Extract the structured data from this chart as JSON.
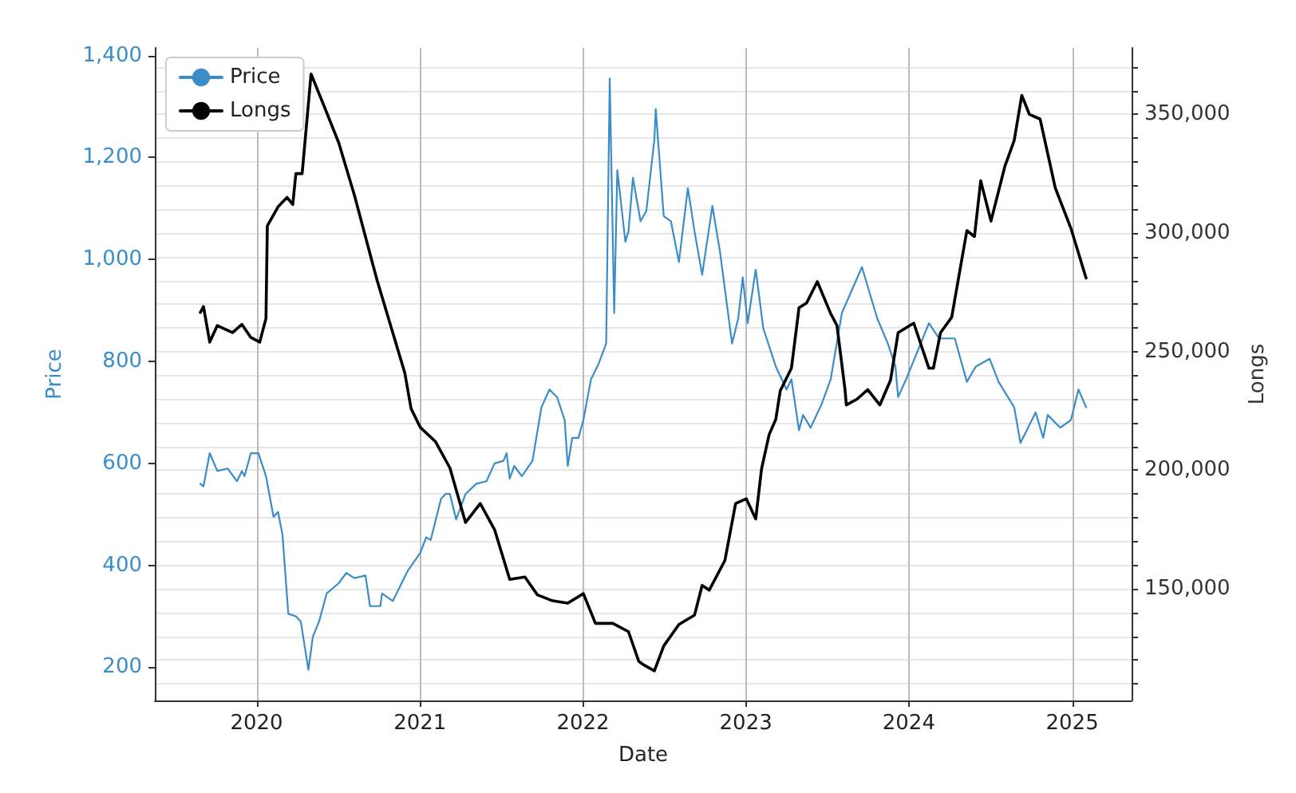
{
  "chart_data": {
    "type": "line",
    "xlabel": "Date",
    "ylabel": "Price",
    "y2label": "Longs",
    "xlim": [
      "2019-05-18",
      "2025-05-14"
    ],
    "xticks": [
      "2020",
      "2021",
      "2022",
      "2023",
      "2024",
      "2025"
    ],
    "ylim": [
      135,
      1415
    ],
    "yticks": [
      {
        "value": 200,
        "label": "200"
      },
      {
        "value": 400,
        "label": "400"
      },
      {
        "value": 600,
        "label": "600"
      },
      {
        "value": 800,
        "label": "800"
      },
      {
        "value": 1000,
        "label": "1,000"
      },
      {
        "value": 1200,
        "label": "1,200"
      },
      {
        "value": 1400,
        "label": "1,400"
      }
    ],
    "y2lim": [
      103000,
      378000
    ],
    "y2ticks": [
      {
        "value": 110000,
        "label": null
      },
      {
        "value": 120000,
        "label": null
      },
      {
        "value": 130000,
        "label": null
      },
      {
        "value": 140000,
        "label": null
      },
      {
        "value": 150000,
        "label": "150,000"
      },
      {
        "value": 160000,
        "label": null
      },
      {
        "value": 170000,
        "label": null
      },
      {
        "value": 180000,
        "label": null
      },
      {
        "value": 190000,
        "label": null
      },
      {
        "value": 200000,
        "label": "200,000"
      },
      {
        "value": 210000,
        "label": null
      },
      {
        "value": 220000,
        "label": null
      },
      {
        "value": 230000,
        "label": null
      },
      {
        "value": 240000,
        "label": null
      },
      {
        "value": 250000,
        "label": "250,000"
      },
      {
        "value": 260000,
        "label": null
      },
      {
        "value": 270000,
        "label": null
      },
      {
        "value": 280000,
        "label": null
      },
      {
        "value": 290000,
        "label": null
      },
      {
        "value": 300000,
        "label": "300,000"
      },
      {
        "value": 310000,
        "label": null
      },
      {
        "value": 320000,
        "label": null
      },
      {
        "value": 330000,
        "label": null
      },
      {
        "value": 340000,
        "label": null
      },
      {
        "value": 350000,
        "label": "350,000"
      },
      {
        "value": 360000,
        "label": null
      },
      {
        "value": 370000,
        "label": null
      }
    ],
    "grid": true,
    "legend": "top left",
    "series": [
      {
        "name": "Price",
        "color": "#3a8dc8",
        "x": [
          "2019-08-28",
          "2019-09-04",
          "2019-09-18",
          "2019-10-05",
          "2019-10-28",
          "2019-11-18",
          "2019-11-29",
          "2019-12-05",
          "2019-12-19",
          "2020-01-05",
          "2020-01-22",
          "2020-02-08",
          "2020-02-18",
          "2020-02-28",
          "2020-03-12",
          "2020-03-29",
          "2020-04-09",
          "2020-04-26",
          "2020-05-06",
          "2020-05-20",
          "2020-06-06",
          "2020-07-03",
          "2020-07-20",
          "2020-08-07",
          "2020-09-01",
          "2020-09-11",
          "2020-10-04",
          "2020-10-08",
          "2020-11-01",
          "2020-11-18",
          "2020-12-05",
          "2021-01-02",
          "2021-01-15",
          "2021-01-25",
          "2021-02-17",
          "2021-02-27",
          "2021-03-09",
          "2021-03-23",
          "2021-04-13",
          "2021-05-07",
          "2021-05-30",
          "2021-06-17",
          "2021-07-07",
          "2021-07-14",
          "2021-07-21",
          "2021-07-31",
          "2021-08-17",
          "2021-09-10",
          "2021-09-30",
          "2021-10-18",
          "2021-11-04",
          "2021-11-21",
          "2021-11-28",
          "2021-12-08",
          "2021-12-22",
          "2022-01-02",
          "2022-01-19",
          "2022-02-05",
          "2022-02-22",
          "2022-03-02",
          "2022-03-12",
          "2022-03-19",
          "2022-04-06",
          "2022-04-13",
          "2022-04-23",
          "2022-05-10",
          "2022-05-23",
          "2022-06-10",
          "2022-06-13",
          "2022-07-01",
          "2022-07-17",
          "2022-08-04",
          "2022-08-24",
          "2022-09-08",
          "2022-09-25",
          "2022-10-18",
          "2022-11-04",
          "2022-12-01",
          "2022-12-15",
          "2022-12-25",
          "2023-01-05",
          "2023-01-23",
          "2023-02-09",
          "2023-03-09",
          "2023-04-02",
          "2023-04-13",
          "2023-04-30",
          "2023-05-09",
          "2023-05-26",
          "2023-06-19",
          "2023-07-10",
          "2023-08-04",
          "2023-09-18",
          "2023-10-22",
          "2023-11-15",
          "2023-12-02",
          "2023-12-08",
          "2023-12-26",
          "2024-02-15",
          "2024-03-09",
          "2024-04-13",
          "2024-05-10",
          "2024-05-30",
          "2024-06-30",
          "2024-07-20",
          "2024-08-24",
          "2024-09-07",
          "2024-10-11",
          "2024-10-28",
          "2024-11-07",
          "2024-12-05",
          "2024-12-29",
          "2025-01-15",
          "2025-02-01"
        ],
        "values": [
          560,
          555,
          620,
          585,
          590,
          565,
          585,
          575,
          620,
          620,
          575,
          495,
          505,
          460,
          305,
          300,
          290,
          195,
          260,
          290,
          345,
          365,
          385,
          375,
          380,
          320,
          320,
          345,
          330,
          360,
          390,
          425,
          455,
          450,
          530,
          540,
          540,
          490,
          540,
          560,
          565,
          600,
          605,
          620,
          570,
          595,
          575,
          605,
          710,
          745,
          730,
          685,
          595,
          650,
          650,
          685,
          765,
          795,
          835,
          1355,
          895,
          1175,
          1035,
          1055,
          1160,
          1075,
          1095,
          1235,
          1295,
          1085,
          1075,
          995,
          1140,
          1055,
          970,
          1105,
          1015,
          835,
          885,
          965,
          875,
          980,
          865,
          790,
          745,
          765,
          665,
          695,
          670,
          715,
          765,
          895,
          985,
          885,
          835,
          790,
          730,
          765,
          875,
          845,
          845,
          760,
          790,
          805,
          760,
          710,
          640,
          700,
          650,
          695,
          670,
          685,
          745,
          710
        ]
      },
      {
        "name": "Longs",
        "color": "#000000",
        "axis": "y2",
        "x": [
          "2019-08-28",
          "2019-09-04",
          "2019-09-18",
          "2019-10-05",
          "2019-11-08",
          "2019-11-29",
          "2019-12-19",
          "2020-01-08",
          "2020-01-22",
          "2020-01-25",
          "2020-02-18",
          "2020-03-09",
          "2020-03-22",
          "2020-03-29",
          "2020-04-12",
          "2020-05-02",
          "2020-05-30",
          "2020-07-03",
          "2020-08-07",
          "2020-09-17",
          "2020-09-27",
          "2020-11-01",
          "2020-11-28",
          "2020-12-12",
          "2021-01-02",
          "2021-02-05",
          "2021-03-09",
          "2021-04-13",
          "2021-05-16",
          "2021-06-17",
          "2021-07-21",
          "2021-08-24",
          "2021-09-21",
          "2021-10-25",
          "2021-11-28",
          "2022-01-02",
          "2022-01-29",
          "2022-03-09",
          "2022-04-13",
          "2022-05-06",
          "2022-05-17",
          "2022-06-10",
          "2022-07-01",
          "2022-08-04",
          "2022-09-08",
          "2022-09-25",
          "2022-10-11",
          "2022-11-15",
          "2022-12-09",
          "2023-01-02",
          "2023-01-23",
          "2023-02-05",
          "2023-02-22",
          "2023-03-09",
          "2023-03-19",
          "2023-04-13",
          "2023-04-30",
          "2023-05-17",
          "2023-06-10",
          "2023-07-10",
          "2023-07-24",
          "2023-08-11",
          "2023-08-14",
          "2023-09-07",
          "2023-10-01",
          "2023-10-28",
          "2023-11-21",
          "2023-12-08",
          "2024-01-12",
          "2024-02-15",
          "2024-02-25",
          "2024-03-12",
          "2024-04-06",
          "2024-05-10",
          "2024-05-27",
          "2024-06-10",
          "2024-07-03",
          "2024-08-03",
          "2024-08-24",
          "2024-09-10",
          "2024-09-27",
          "2024-10-21",
          "2024-11-24",
          "2024-12-29",
          "2025-02-01"
        ],
        "values": [
          266500,
          269000,
          254000,
          261000,
          258000,
          261500,
          256000,
          254000,
          264000,
          303000,
          311000,
          315000,
          312000,
          325000,
          325000,
          367000,
          354000,
          338000,
          316000,
          287000,
          280000,
          258000,
          241000,
          226000,
          218000,
          212000,
          201000,
          178000,
          186000,
          175000,
          154000,
          155000,
          147500,
          145000,
          144000,
          148000,
          135500,
          135500,
          132000,
          119500,
          118000,
          115500,
          126000,
          135000,
          139000,
          151500,
          149500,
          162000,
          186000,
          188000,
          179500,
          200500,
          215000,
          221500,
          233500,
          243000,
          268500,
          270500,
          279500,
          266000,
          261000,
          234000,
          227500,
          230000,
          234000,
          227500,
          238000,
          258000,
          262000,
          243000,
          243000,
          258000,
          264500,
          301000,
          298500,
          322000,
          305000,
          328000,
          339000,
          358000,
          350000,
          348000,
          319000,
          302000,
          281000
        ]
      }
    ]
  }
}
